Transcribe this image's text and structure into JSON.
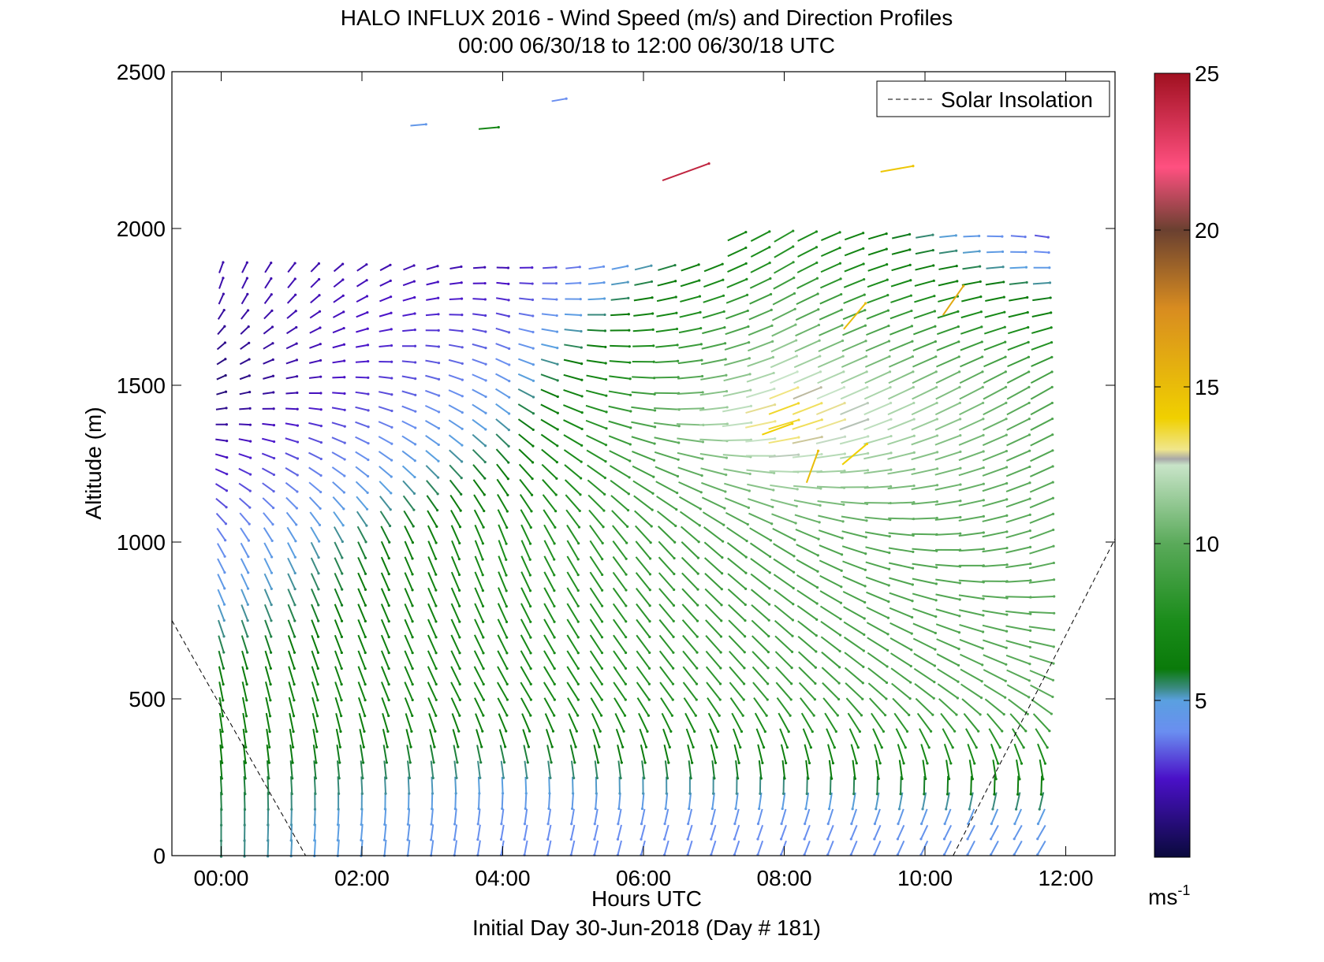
{
  "chart_data": {
    "type": "quiver",
    "title": "HALO INFLUX 2016 - Wind Speed (m/s) and Direction Profiles",
    "subtitle": "00:00 06/30/18 to 12:00 06/30/18  UTC",
    "xlabel": "Hours UTC",
    "ylabel": "Altitude (m)",
    "footer": "Initial Day 30-Jun-2018 (Day # 181)",
    "xlim_hours": [
      -0.7,
      12.7
    ],
    "ylim": [
      0,
      2500
    ],
    "x_ticks": [
      {
        "value": 0,
        "label": "00:00"
      },
      {
        "value": 2,
        "label": "02:00"
      },
      {
        "value": 4,
        "label": "04:00"
      },
      {
        "value": 6,
        "label": "06:00"
      },
      {
        "value": 8,
        "label": "08:00"
      },
      {
        "value": 10,
        "label": "10:00"
      },
      {
        "value": 12,
        "label": "12:00"
      }
    ],
    "y_ticks": [
      {
        "value": 0,
        "label": "0"
      },
      {
        "value": 500,
        "label": "500"
      },
      {
        "value": 1000,
        "label": "1000"
      },
      {
        "value": 1500,
        "label": "1500"
      },
      {
        "value": 2000,
        "label": "2000"
      },
      {
        "value": 2500,
        "label": "2500"
      }
    ],
    "legend": {
      "label": "Solar Insolation",
      "style": "dashed",
      "color": "#000000",
      "placement": "top-right"
    },
    "colorbar": {
      "min": 0,
      "max": 25,
      "unit": "ms",
      "unit_exponent": "-1",
      "ticks": [
        {
          "value": 5,
          "label": "5"
        },
        {
          "value": 10,
          "label": "10"
        },
        {
          "value": 15,
          "label": "15"
        },
        {
          "value": 20,
          "label": "20"
        },
        {
          "value": 25,
          "label": "25"
        }
      ],
      "stops": [
        {
          "value": 0,
          "color": "#0a0a3c"
        },
        {
          "value": 2.5,
          "color": "#4a10c8"
        },
        {
          "value": 4.0,
          "color": "#6a8ef0"
        },
        {
          "value": 5.0,
          "color": "#5aa0e0"
        },
        {
          "value": 5.4,
          "color": "#3a8a80"
        },
        {
          "value": 6.0,
          "color": "#0a7a0a"
        },
        {
          "value": 7.5,
          "color": "#1a8c1a"
        },
        {
          "value": 10.0,
          "color": "#5aaa5a"
        },
        {
          "value": 12.5,
          "color": "#c8e4c8"
        },
        {
          "value": 12.7,
          "color": "#a8a8a8"
        },
        {
          "value": 13.0,
          "color": "#f0e68c"
        },
        {
          "value": 14.0,
          "color": "#f0d000"
        },
        {
          "value": 17.5,
          "color": "#d88c20"
        },
        {
          "value": 20.0,
          "color": "#6a4030"
        },
        {
          "value": 22.0,
          "color": "#ff5080"
        },
        {
          "value": 25.0,
          "color": "#a01020"
        }
      ]
    },
    "solar_insolation": {
      "segments": [
        [
          {
            "hour": -0.7,
            "altitude": 750
          },
          {
            "hour": 1.2,
            "altitude": 0
          }
        ],
        [
          {
            "hour": 10.4,
            "altitude": 0
          },
          {
            "hour": 12.7,
            "altitude": 1010
          }
        ]
      ]
    },
    "wind_profiles": {
      "time_start_hour": 0.0,
      "time_step_hours": 0.333,
      "num_profiles": 36,
      "altitude_start_m": 25,
      "altitude_step_m": 50,
      "num_levels": 40,
      "variables": [
        "speed_ms",
        "direction_deg"
      ],
      "representative_profiles": [
        {
          "hour": 0.0,
          "levels": [
            {
              "altitude": 100,
              "speed_ms": 5.5,
              "direction_deg": 0
            },
            {
              "altitude": 500,
              "speed_ms": 6.5,
              "direction_deg": 350
            },
            {
              "altitude": 1000,
              "speed_ms": 4.0,
              "direction_deg": 330
            },
            {
              "altitude": 1500,
              "speed_ms": 1.0,
              "direction_deg": 250
            },
            {
              "altitude": 1800,
              "speed_ms": 2.0,
              "direction_deg": 200
            }
          ]
        },
        {
          "hour": 4.0,
          "levels": [
            {
              "altitude": 100,
              "speed_ms": 4.0,
              "direction_deg": 10
            },
            {
              "altitude": 500,
              "speed_ms": 7.0,
              "direction_deg": 330
            },
            {
              "altitude": 1000,
              "speed_ms": 7.5,
              "direction_deg": 340
            },
            {
              "altitude": 1500,
              "speed_ms": 4.5,
              "direction_deg": 300
            },
            {
              "altitude": 1900,
              "speed_ms": 2.0,
              "direction_deg": 270
            }
          ]
        },
        {
          "hour": 8.0,
          "levels": [
            {
              "altitude": 100,
              "speed_ms": 4.0,
              "direction_deg": 20
            },
            {
              "altitude": 500,
              "speed_ms": 8.5,
              "direction_deg": 320
            },
            {
              "altitude": 1000,
              "speed_ms": 9.5,
              "direction_deg": 300
            },
            {
              "altitude": 1400,
              "speed_ms": 14.0,
              "direction_deg": 250
            },
            {
              "altitude": 1900,
              "speed_ms": 8.0,
              "direction_deg": 240
            }
          ]
        },
        {
          "hour": 11.67,
          "levels": [
            {
              "altitude": 100,
              "speed_ms": 4.5,
              "direction_deg": 30
            },
            {
              "altitude": 500,
              "speed_ms": 10.0,
              "direction_deg": 300
            },
            {
              "altitude": 1000,
              "speed_ms": 10.0,
              "direction_deg": 250
            },
            {
              "altitude": 1500,
              "speed_ms": 9.5,
              "direction_deg": 240
            },
            {
              "altitude": 2000,
              "speed_ms": 3.0,
              "direction_deg": 280
            }
          ]
        }
      ],
      "sparse_upper_vectors": [
        {
          "hour": 4.8,
          "altitude": 2410,
          "speed_ms": 4.0,
          "direction_deg": 260
        },
        {
          "hour": 2.8,
          "altitude": 2330,
          "speed_ms": 4.5,
          "direction_deg": 265
        },
        {
          "hour": 3.8,
          "altitude": 2320,
          "speed_ms": 7.0,
          "direction_deg": 265
        },
        {
          "hour": 6.6,
          "altitude": 2180,
          "speed_ms": 24.0,
          "direction_deg": 250
        },
        {
          "hour": 9.6,
          "altitude": 2190,
          "speed_ms": 14.5,
          "direction_deg": 260
        },
        {
          "hour": 9.0,
          "altitude": 1720,
          "speed_ms": 15.0,
          "direction_deg": 220
        },
        {
          "hour": 9.0,
          "altitude": 1280,
          "speed_ms": 14.0,
          "direction_deg": 230
        },
        {
          "hour": 7.9,
          "altitude": 1360,
          "speed_ms": 14.0,
          "direction_deg": 250
        },
        {
          "hour": 8.4,
          "altitude": 1240,
          "speed_ms": 15.0,
          "direction_deg": 200
        },
        {
          "hour": 10.4,
          "altitude": 1770,
          "speed_ms": 16.0,
          "direction_deg": 215
        }
      ]
    }
  }
}
